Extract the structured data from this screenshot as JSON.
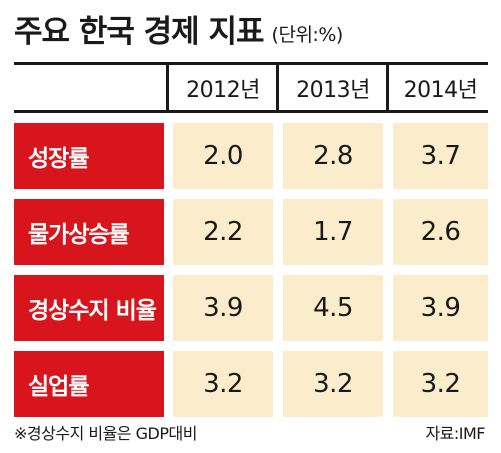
{
  "title": "주요 한국 경제 지표",
  "unit": "(단위:%)",
  "columns": [
    "2012년",
    "2013년",
    "2014년"
  ],
  "rows": [
    {
      "label": "성장률",
      "values": [
        "2.0",
        "2.8",
        "3.7"
      ]
    },
    {
      "label": "물가상승률",
      "values": [
        "2.2",
        "1.7",
        "2.6"
      ]
    },
    {
      "label": "경상수지 비율",
      "values": [
        "3.9",
        "4.5",
        "3.9"
      ]
    },
    {
      "label": "실업률",
      "values": [
        "3.2",
        "3.2",
        "3.2"
      ]
    }
  ],
  "note": "※경상수지 비율은 GDP대비",
  "source": "자료:IMF",
  "colors": {
    "label_bg": "#d8151c",
    "value_bg": "#fbedcc",
    "rule": "#1a1a1a"
  }
}
